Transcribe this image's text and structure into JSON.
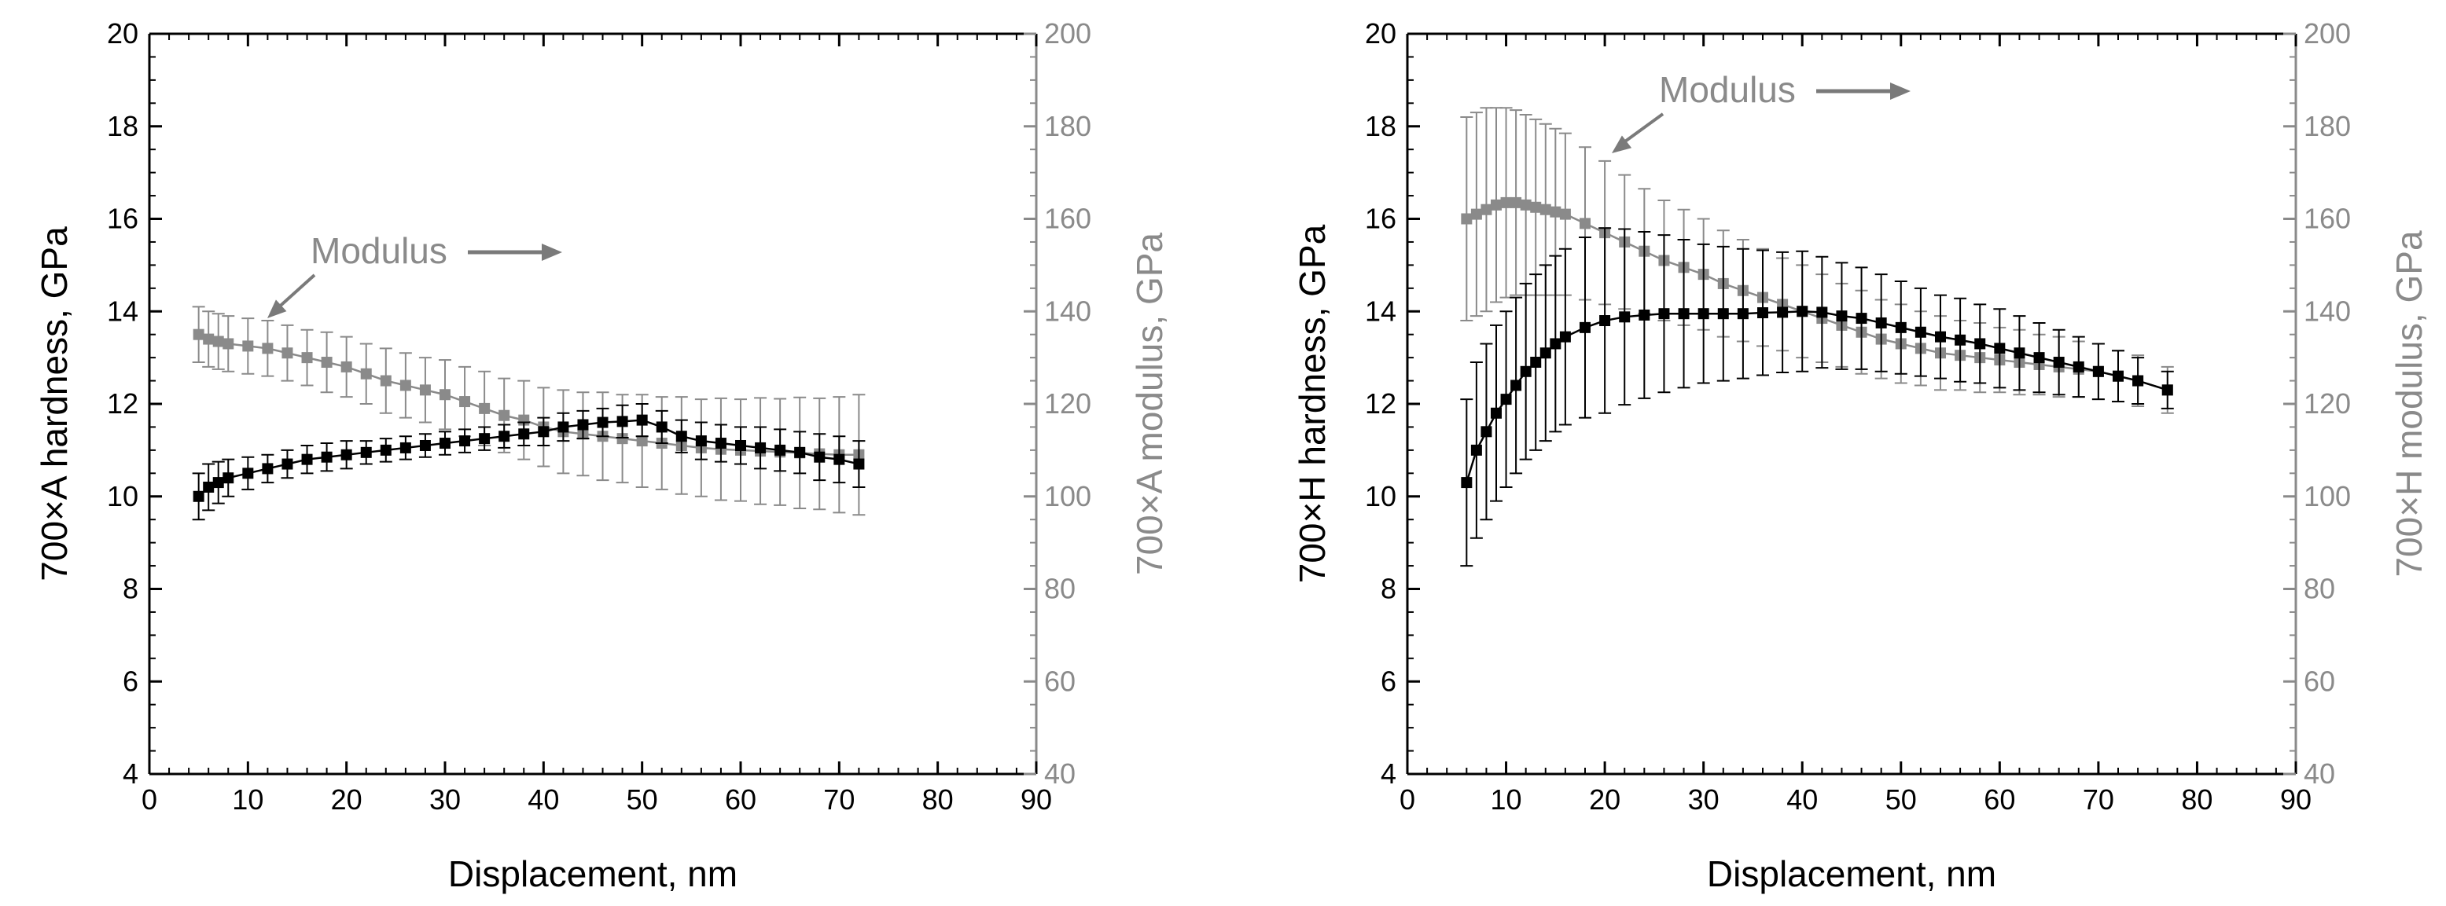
{
  "colors": {
    "hardness": "#000000",
    "modulus": "#8a8a8a",
    "axis": "#000000",
    "arrow": "#7a7a7a"
  },
  "chart_data": [
    {
      "type": "scatter",
      "panel": "left",
      "xlabel": "Displacement, nm",
      "ylabel": "700×A hardness, GPa",
      "y2label": "700×A modulus, GPa",
      "xlim": [
        0,
        90
      ],
      "ylim": [
        4,
        20
      ],
      "y2lim": [
        40,
        200
      ],
      "xticks": [
        "0",
        "10",
        "20",
        "30",
        "40",
        "50",
        "60",
        "70",
        "80",
        "90"
      ],
      "yticks": [
        "4",
        "6",
        "8",
        "10",
        "12",
        "14",
        "16",
        "18",
        "20"
      ],
      "y2ticks": [
        "40",
        "60",
        "80",
        "100",
        "120",
        "140",
        "160",
        "180",
        "200"
      ],
      "annotation": {
        "text": "Modulus",
        "arrow_direction": "right"
      },
      "series": [
        {
          "name": "hardness",
          "axis": "left",
          "x": [
            5,
            6,
            7,
            8,
            10,
            12,
            14,
            16,
            18,
            20,
            22,
            24,
            26,
            28,
            30,
            32,
            34,
            36,
            38,
            40,
            42,
            44,
            46,
            48,
            50,
            52,
            54,
            56,
            58,
            60,
            62,
            64,
            66,
            68,
            70,
            72
          ],
          "y": [
            10.0,
            10.2,
            10.3,
            10.4,
            10.5,
            10.6,
            10.7,
            10.8,
            10.85,
            10.9,
            10.95,
            11.0,
            11.05,
            11.1,
            11.15,
            11.2,
            11.25,
            11.3,
            11.35,
            11.4,
            11.5,
            11.55,
            11.6,
            11.62,
            11.65,
            11.5,
            11.3,
            11.2,
            11.15,
            11.1,
            11.05,
            11.0,
            10.95,
            10.85,
            10.8,
            10.7
          ],
          "err": [
            0.5,
            0.5,
            0.45,
            0.4,
            0.35,
            0.3,
            0.3,
            0.3,
            0.3,
            0.3,
            0.25,
            0.25,
            0.25,
            0.25,
            0.25,
            0.25,
            0.25,
            0.25,
            0.25,
            0.3,
            0.3,
            0.3,
            0.3,
            0.35,
            0.35,
            0.35,
            0.35,
            0.4,
            0.4,
            0.4,
            0.45,
            0.45,
            0.45,
            0.5,
            0.5,
            0.5
          ]
        },
        {
          "name": "modulus",
          "axis": "right",
          "x": [
            5,
            6,
            7,
            8,
            10,
            12,
            14,
            16,
            18,
            20,
            22,
            24,
            26,
            28,
            30,
            32,
            34,
            36,
            38,
            40,
            42,
            44,
            46,
            48,
            50,
            52,
            54,
            56,
            58,
            60,
            62,
            64,
            66,
            68,
            70,
            72
          ],
          "y": [
            135,
            134,
            133.5,
            133,
            132.5,
            132,
            131,
            130,
            129,
            128,
            126.5,
            125,
            124,
            123,
            122,
            120.5,
            119,
            117.5,
            116.5,
            115,
            114,
            113.5,
            113,
            112.5,
            112,
            111.5,
            111,
            110.5,
            110.2,
            110,
            109.8,
            109.6,
            109.4,
            109.2,
            109,
            109
          ],
          "err": [
            6,
            6,
            6,
            6,
            6,
            6,
            6,
            6,
            6.5,
            6.5,
            6.5,
            7,
            7,
            7,
            7.5,
            7.5,
            8,
            8,
            8.5,
            8.5,
            9,
            9,
            9.5,
            9.5,
            10,
            10,
            10.5,
            10.5,
            11,
            11,
            11.5,
            11.5,
            12,
            12,
            12.5,
            13
          ]
        }
      ]
    },
    {
      "type": "scatter",
      "panel": "right",
      "xlabel": "Displacement, nm",
      "ylabel": "700×H hardness, GPa",
      "y2label": "700×H modulus, GPa",
      "xlim": [
        0,
        90
      ],
      "ylim": [
        4,
        20
      ],
      "y2lim": [
        40,
        200
      ],
      "xticks": [
        "0",
        "10",
        "20",
        "30",
        "40",
        "50",
        "60",
        "70",
        "80",
        "90"
      ],
      "yticks": [
        "4",
        "6",
        "8",
        "10",
        "12",
        "14",
        "16",
        "18",
        "20"
      ],
      "y2ticks": [
        "40",
        "60",
        "80",
        "100",
        "120",
        "140",
        "160",
        "180",
        "200"
      ],
      "annotation": {
        "text": "Modulus",
        "arrow_direction": "right"
      },
      "series": [
        {
          "name": "hardness",
          "axis": "left",
          "x": [
            6,
            7,
            8,
            9,
            10,
            11,
            12,
            13,
            14,
            15,
            16,
            18,
            20,
            22,
            24,
            26,
            28,
            30,
            32,
            34,
            36,
            38,
            40,
            42,
            44,
            46,
            48,
            50,
            52,
            54,
            56,
            58,
            60,
            62,
            64,
            66,
            68,
            70,
            72,
            74,
            77
          ],
          "y": [
            10.3,
            11.0,
            11.4,
            11.8,
            12.1,
            12.4,
            12.7,
            12.9,
            13.1,
            13.3,
            13.45,
            13.65,
            13.8,
            13.88,
            13.92,
            13.95,
            13.95,
            13.95,
            13.95,
            13.95,
            13.97,
            13.98,
            14.0,
            13.98,
            13.9,
            13.85,
            13.75,
            13.65,
            13.55,
            13.45,
            13.38,
            13.3,
            13.2,
            13.1,
            13.0,
            12.9,
            12.8,
            12.7,
            12.6,
            12.5,
            12.3
          ],
          "err": [
            1.8,
            1.9,
            1.9,
            1.9,
            1.9,
            1.9,
            1.9,
            1.9,
            1.9,
            1.9,
            1.9,
            1.95,
            2.0,
            1.9,
            1.8,
            1.7,
            1.6,
            1.5,
            1.45,
            1.4,
            1.35,
            1.3,
            1.3,
            1.2,
            1.15,
            1.1,
            1.05,
            1.0,
            0.95,
            0.9,
            0.9,
            0.85,
            0.85,
            0.8,
            0.75,
            0.7,
            0.65,
            0.6,
            0.55,
            0.5,
            0.4
          ]
        },
        {
          "name": "modulus",
          "axis": "right",
          "x": [
            6,
            7,
            8,
            9,
            10,
            11,
            12,
            13,
            14,
            15,
            16,
            18,
            20,
            22,
            24,
            26,
            28,
            30,
            32,
            34,
            36,
            38,
            40,
            42,
            44,
            46,
            48,
            50,
            52,
            54,
            56,
            58,
            60,
            62,
            64,
            66,
            68,
            70,
            72,
            74,
            77
          ],
          "y": [
            160,
            161,
            162,
            163,
            163.5,
            163.5,
            163,
            162.5,
            162,
            161.5,
            161,
            159,
            157,
            155,
            153,
            151,
            149.5,
            148,
            146,
            144.5,
            143,
            141.5,
            140,
            138.5,
            137,
            135.5,
            134,
            133,
            132,
            131,
            130.5,
            130,
            129.5,
            129,
            128.5,
            128,
            127.5,
            127,
            126,
            125,
            123
          ],
          "err": [
            22,
            22,
            22,
            21,
            20.5,
            20,
            19.5,
            19,
            18.5,
            18,
            17.5,
            16.5,
            15.5,
            14.5,
            13.5,
            13,
            12.5,
            12,
            11.5,
            11,
            10.5,
            10,
            10,
            9.5,
            9,
            9,
            8.5,
            8.5,
            8,
            8,
            7.5,
            7.5,
            7,
            7,
            6.5,
            6.5,
            6,
            6,
            5.5,
            5.5,
            5
          ]
        }
      ]
    }
  ]
}
